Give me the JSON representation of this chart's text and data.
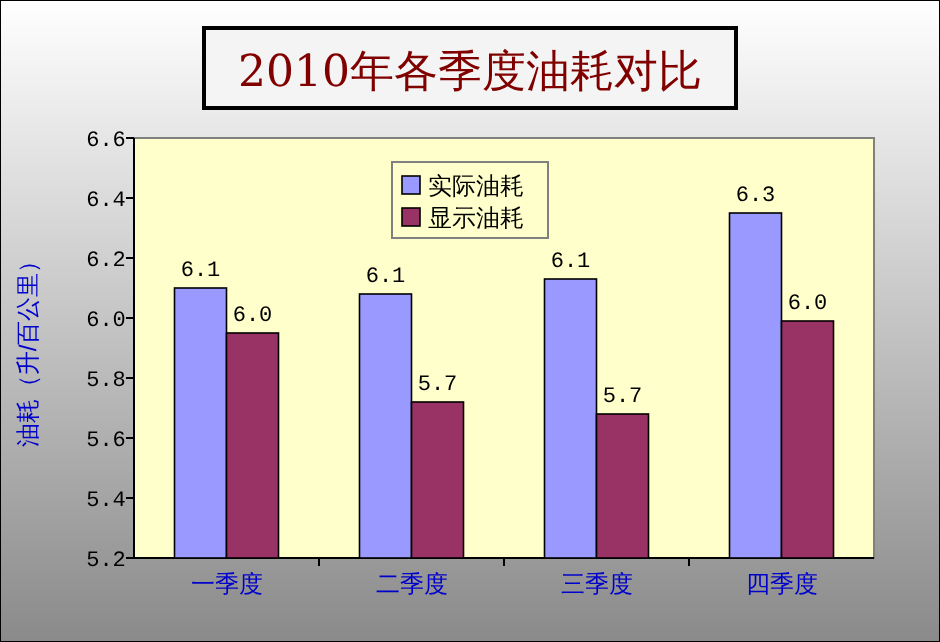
{
  "chart_data": {
    "type": "bar",
    "title": "2010年各季度油耗对比",
    "ylabel": "油耗（升/百公里）",
    "categories": [
      "一季度",
      "二季度",
      "三季度",
      "四季度"
    ],
    "series": [
      {
        "name": "实际油耗",
        "color": "#9999ff",
        "values": [
          6.1,
          6.08,
          6.13,
          6.35
        ],
        "value_labels": [
          "6.1",
          "6.1",
          "6.1",
          "6.3"
        ]
      },
      {
        "name": "显示油耗",
        "color": "#993366",
        "values": [
          5.95,
          5.72,
          5.68,
          5.99
        ],
        "value_labels": [
          "6.0",
          "5.7",
          "5.7",
          "6.0"
        ]
      }
    ],
    "ylim": [
      5.2,
      6.6
    ],
    "yticks": [
      {
        "value": 5.2,
        "label": "5.2"
      },
      {
        "value": 5.4,
        "label": "5.4"
      },
      {
        "value": 5.6,
        "label": "5.6"
      },
      {
        "value": 5.8,
        "label": "5.8"
      },
      {
        "value": 6.0,
        "label": "6.0"
      },
      {
        "value": 6.2,
        "label": "6.2"
      },
      {
        "value": 6.4,
        "label": "6.4"
      },
      {
        "value": 6.6,
        "label": "6.6"
      }
    ],
    "grid": false,
    "legend": "top"
  }
}
